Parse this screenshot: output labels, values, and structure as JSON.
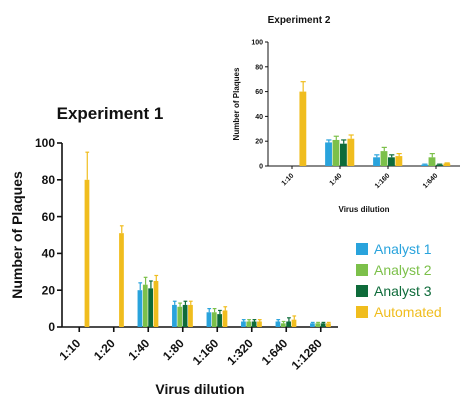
{
  "chart_data": [
    {
      "type": "bar",
      "title": "Experiment 1",
      "xlabel": "Virus dilution",
      "ylabel": "Number of Plaques",
      "ylim": [
        0,
        100
      ],
      "yticks": [
        0,
        20,
        40,
        60,
        80,
        100
      ],
      "categories": [
        "1:10",
        "1:20",
        "1:40",
        "1:80",
        "1:160",
        "1:320",
        "1:640",
        "1:1280"
      ],
      "series": [
        {
          "name": "Analyst 1",
          "color": "#29a3dc",
          "values": [
            null,
            null,
            20,
            12,
            8,
            3,
            3,
            2
          ],
          "errors": [
            null,
            null,
            4,
            2,
            2,
            1,
            1,
            0.5
          ]
        },
        {
          "name": "Analyst 2",
          "color": "#7cc04a",
          "values": [
            null,
            null,
            23,
            11,
            8,
            3,
            2,
            2
          ],
          "errors": [
            null,
            null,
            4,
            2,
            2,
            1,
            1,
            0.5
          ]
        },
        {
          "name": "Analyst 3",
          "color": "#0e6b3a",
          "values": [
            null,
            null,
            21,
            12,
            7,
            3,
            3,
            2
          ],
          "errors": [
            null,
            null,
            4,
            2,
            2,
            1,
            2,
            0.5
          ]
        },
        {
          "name": "Automated",
          "color": "#f0bd1e",
          "values": [
            80,
            51,
            25,
            12,
            9,
            3,
            4,
            2
          ],
          "errors": [
            15,
            4,
            3,
            2,
            2,
            1,
            2,
            0.5
          ]
        }
      ],
      "legend": "right"
    },
    {
      "type": "bar",
      "title": "Experiment 2",
      "xlabel": "Virus dilution",
      "ylabel": "Number of Plaques",
      "ylim": [
        0,
        100
      ],
      "yticks": [
        0,
        20,
        40,
        60,
        80,
        100
      ],
      "categories": [
        "1:10",
        "1:40",
        "1:160",
        "1:640"
      ],
      "series": [
        {
          "name": "Analyst 1",
          "color": "#29a3dc",
          "values": [
            null,
            19,
            7,
            1
          ],
          "errors": [
            null,
            2,
            2,
            0.5
          ]
        },
        {
          "name": "Analyst 2",
          "color": "#7cc04a",
          "values": [
            null,
            21,
            12,
            7
          ],
          "errors": [
            null,
            3,
            3,
            3
          ]
        },
        {
          "name": "Analyst 3",
          "color": "#0e6b3a",
          "values": [
            null,
            18,
            7,
            1
          ],
          "errors": [
            null,
            3,
            2,
            0.5
          ]
        },
        {
          "name": "Automated",
          "color": "#f0bd1e",
          "values": [
            60,
            22,
            8,
            2
          ],
          "errors": [
            8,
            3,
            2,
            0.5
          ]
        }
      ]
    }
  ]
}
